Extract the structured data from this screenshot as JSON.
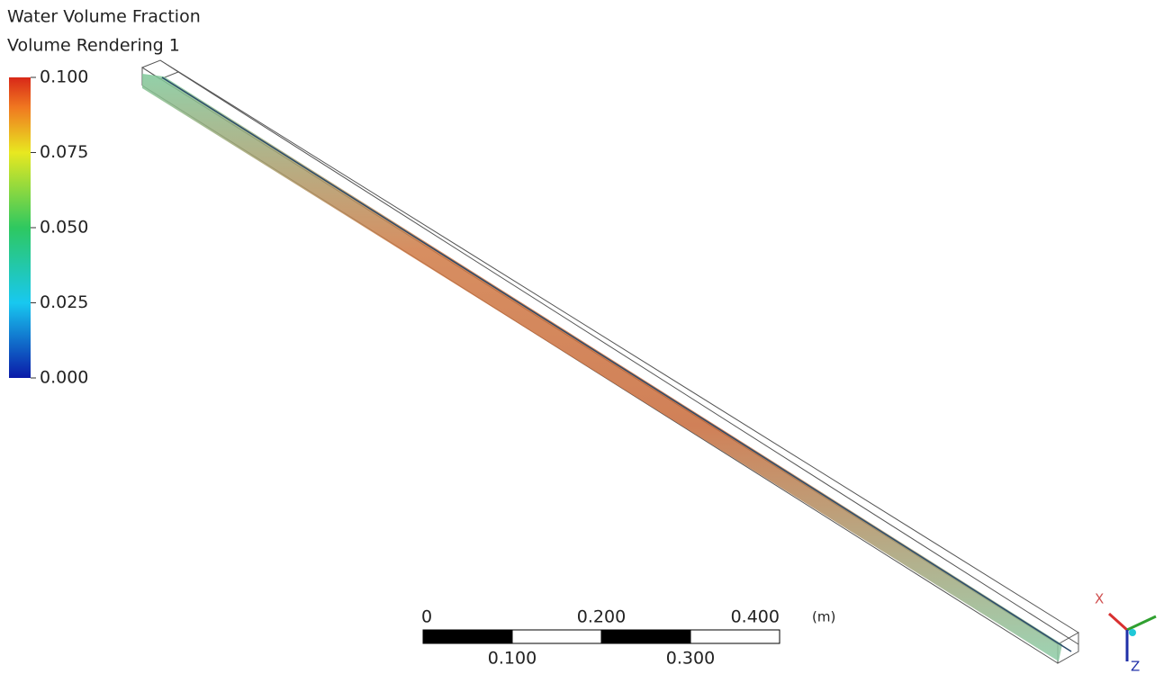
{
  "legend": {
    "title": "Water Volume Fraction",
    "subtitle": "Volume Rendering 1",
    "range": [
      0,
      0.1
    ],
    "ticks": [
      {
        "value": 0.1,
        "label": "0.100"
      },
      {
        "value": 0.075,
        "label": "0.075"
      },
      {
        "value": 0.05,
        "label": "0.050"
      },
      {
        "value": 0.025,
        "label": "0.025"
      },
      {
        "value": 0,
        "label": "0.000"
      }
    ]
  },
  "scale_bar": {
    "unit": "(m)",
    "range": [
      0,
      0.4
    ],
    "ticks": [
      {
        "value": 0,
        "label": "0"
      },
      {
        "value": 0.1,
        "label": "0.100"
      },
      {
        "value": 0.2,
        "label": "0.200"
      },
      {
        "value": 0.3,
        "label": "0.300"
      },
      {
        "value": 0.4,
        "label": "0.400"
      }
    ]
  },
  "triad": {
    "x_label": "X",
    "z_label": "Z"
  }
}
